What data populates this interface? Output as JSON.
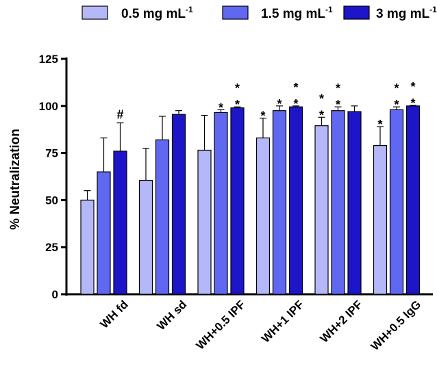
{
  "chart_data": {
    "type": "bar",
    "ylabel": "% Neutralization",
    "ylim": [
      0,
      125
    ],
    "yticks": [
      "0",
      "25",
      "50",
      "75",
      "100",
      "125"
    ],
    "categories": [
      "WH fd",
      "WH sd",
      "WH+0.5 IPF",
      "WH+1 IPF",
      "WH+2 IPF",
      "WH+0.5 IgG"
    ],
    "legend_placement": "top",
    "series": [
      {
        "name": "0.5 mg mL",
        "name_sup": "-1",
        "color": "#b4b8f8",
        "values": [
          50,
          60.5,
          76.5,
          83,
          89.5,
          79
        ],
        "errors": [
          5,
          17,
          18.5,
          10.5,
          4.5,
          10
        ],
        "annotations": [
          "",
          "",
          "",
          "*",
          "* *",
          "*"
        ]
      },
      {
        "name": "1.5 mg mL",
        "name_sup": "-1",
        "color": "#6067f0",
        "values": [
          65,
          82,
          96.5,
          97.5,
          97.5,
          98
        ],
        "errors": [
          18,
          12.5,
          1.5,
          2.5,
          2,
          1.5
        ],
        "annotations": [
          "",
          "",
          "*",
          "*",
          "* *",
          "* *"
        ]
      },
      {
        "name": "3 mg mL",
        "name_sup": "-1",
        "color": "#1d15c8",
        "values": [
          76,
          95.5,
          99,
          99.5,
          97,
          100
        ],
        "errors": [
          15,
          2,
          0.5,
          0.5,
          3,
          0.3
        ],
        "annotations": [
          "#",
          "",
          "* *",
          "* *",
          "",
          "* *"
        ]
      }
    ]
  }
}
